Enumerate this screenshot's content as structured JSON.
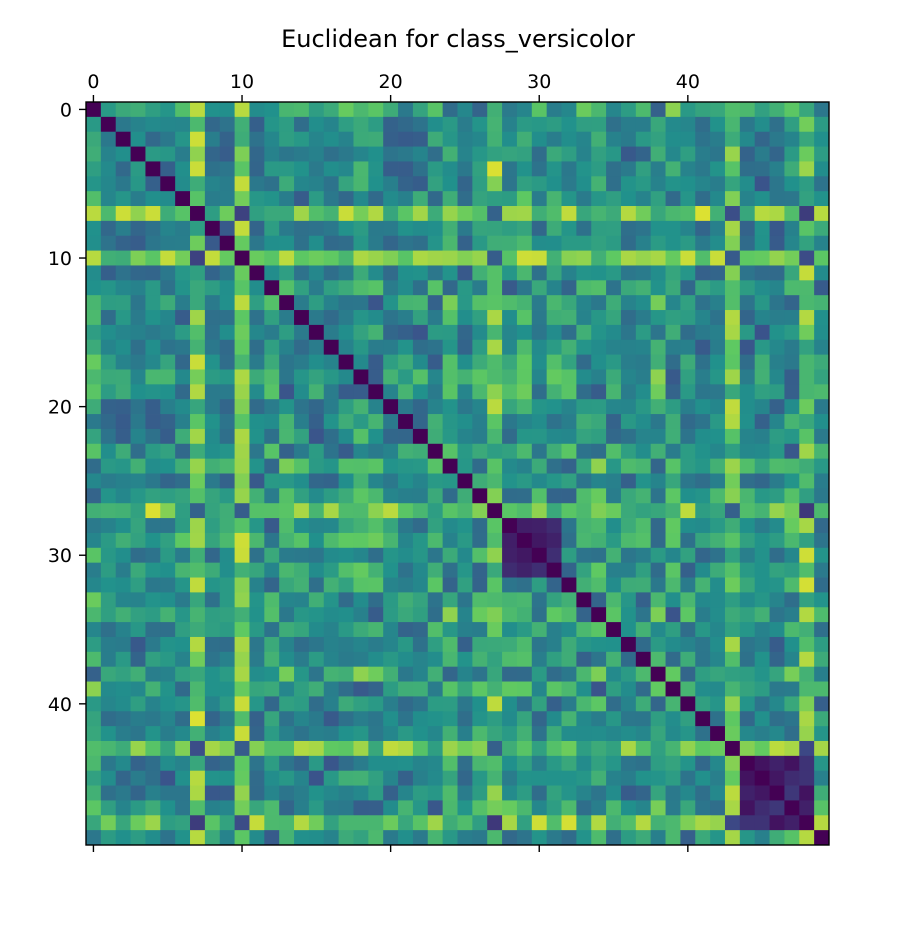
{
  "chart_data": {
    "type": "heatmap",
    "title": "Euclidean for class_versicolor",
    "size": 50,
    "x_ticks": [
      0,
      10,
      20,
      30,
      40
    ],
    "y_ticks": [
      0,
      10,
      20,
      30,
      40
    ],
    "x_tick_labels": [
      "0",
      "10",
      "20",
      "30",
      "40"
    ],
    "y_tick_labels": [
      "0",
      "10",
      "20",
      "30",
      "40"
    ],
    "x_axis_position": "top",
    "colormap": "viridis",
    "colormap_stops": [
      "#440154",
      "#3b528b",
      "#21918c",
      "#5ec962",
      "#fde725"
    ],
    "bright_rows": [
      7,
      10,
      27,
      43,
      48
    ],
    "dark_block": [
      28,
      31
    ],
    "dark_block_2": [
      44,
      48
    ]
  }
}
